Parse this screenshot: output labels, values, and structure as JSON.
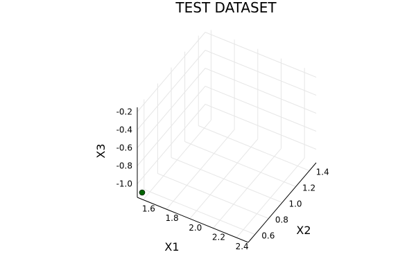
{
  "chart_data": {
    "type": "scatter",
    "title": "TEST DATASET",
    "xlabel": "X1",
    "ylabel": "X2",
    "zlabel": "X3",
    "x_ticks": [
      "1.6",
      "1.8",
      "2.0",
      "2.2",
      "2.4"
    ],
    "y_ticks": [
      "0.6",
      "0.8",
      "1.0",
      "1.2",
      "1.4"
    ],
    "z_ticks": [
      "-0.2",
      "-0.4",
      "-0.6",
      "-0.8",
      "-1.0"
    ],
    "xlim": [
      1.55,
      2.5
    ],
    "ylim": [
      0.5,
      1.5
    ],
    "zlim": [
      -1.15,
      -0.15
    ],
    "grid": true,
    "points": [
      {
        "x": 1.55,
        "y": 0.5,
        "z": -1.15
      }
    ],
    "marker_color": "#006400"
  }
}
